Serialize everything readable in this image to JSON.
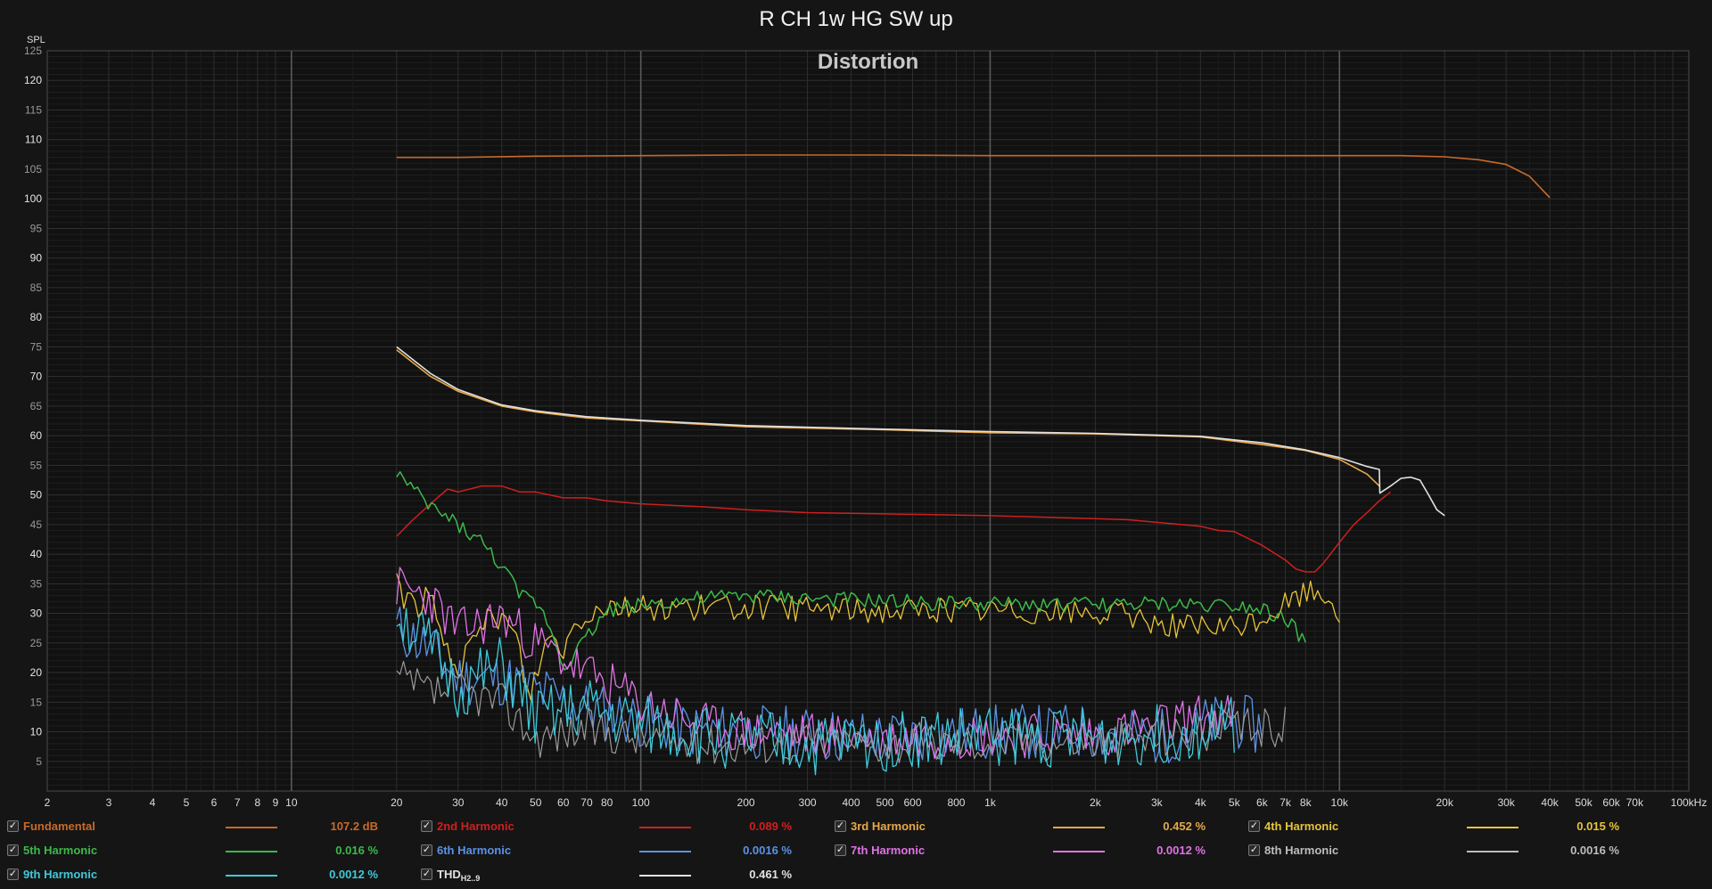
{
  "title": "R CH 1w HG SW up",
  "subtitle": "Distortion",
  "ylabel": "SPL",
  "chart_data": {
    "type": "line",
    "title": "R CH 1w HG SW up",
    "subtitle": "Distortion",
    "ylabel": "SPL",
    "ylim": [
      0,
      125
    ],
    "xlim": [
      2,
      100000
    ],
    "xscale": "log",
    "grid": true,
    "legend_position": "bottom",
    "y_ticks": [
      5,
      10,
      15,
      20,
      25,
      30,
      35,
      40,
      45,
      50,
      55,
      60,
      65,
      70,
      75,
      80,
      85,
      90,
      95,
      100,
      105,
      110,
      115,
      120,
      125
    ],
    "x_ticks": [
      {
        "v": 2,
        "t": "2"
      },
      {
        "v": 3,
        "t": "3"
      },
      {
        "v": 4,
        "t": "4"
      },
      {
        "v": 5,
        "t": "5"
      },
      {
        "v": 6,
        "t": "6"
      },
      {
        "v": 7,
        "t": "7"
      },
      {
        "v": 8,
        "t": "8"
      },
      {
        "v": 9,
        "t": "9"
      },
      {
        "v": 10,
        "t": "10"
      },
      {
        "v": 20,
        "t": "20"
      },
      {
        "v": 30,
        "t": "30"
      },
      {
        "v": 40,
        "t": "40"
      },
      {
        "v": 50,
        "t": "50"
      },
      {
        "v": 60,
        "t": "60"
      },
      {
        "v": 70,
        "t": "70"
      },
      {
        "v": 80,
        "t": "80"
      },
      {
        "v": 100,
        "t": "100"
      },
      {
        "v": 200,
        "t": "200"
      },
      {
        "v": 300,
        "t": "300"
      },
      {
        "v": 400,
        "t": "400"
      },
      {
        "v": 500,
        "t": "500"
      },
      {
        "v": 600,
        "t": "600"
      },
      {
        "v": 800,
        "t": "800"
      },
      {
        "v": 1000,
        "t": "1k"
      },
      {
        "v": 2000,
        "t": "2k"
      },
      {
        "v": 3000,
        "t": "3k"
      },
      {
        "v": 4000,
        "t": "4k"
      },
      {
        "v": 5000,
        "t": "5k"
      },
      {
        "v": 6000,
        "t": "6k"
      },
      {
        "v": 7000,
        "t": "7k"
      },
      {
        "v": 8000,
        "t": "8k"
      },
      {
        "v": 10000,
        "t": "10k"
      },
      {
        "v": 20000,
        "t": "20k"
      },
      {
        "v": 30000,
        "t": "30k"
      },
      {
        "v": 40000,
        "t": "40k"
      },
      {
        "v": 50000,
        "t": "50k"
      },
      {
        "v": 60000,
        "t": "60k"
      },
      {
        "v": 70000,
        "t": "70k"
      },
      {
        "v": 100000,
        "t": "100kHz"
      }
    ],
    "series": [
      {
        "name": "Fundamental",
        "color": "#c76a2b",
        "width": 1.6,
        "x": [
          20,
          30,
          50,
          100,
          200,
          500,
          1000,
          2000,
          5000,
          10000,
          15000,
          20000,
          25000,
          30000,
          35000,
          40000
        ],
        "y": [
          107,
          107,
          107.2,
          107.3,
          107.4,
          107.4,
          107.3,
          107.3,
          107.3,
          107.3,
          107.3,
          107.1,
          106.6,
          105.8,
          103.8,
          100.2
        ]
      },
      {
        "name": "2nd Harmonic",
        "color": "#d01f1f",
        "width": 1.5,
        "x": [
          20,
          22,
          25,
          28,
          30,
          35,
          40,
          45,
          50,
          60,
          70,
          80,
          100,
          150,
          200,
          300,
          500,
          1000,
          2000,
          2500,
          3500,
          4000,
          4500,
          5000,
          6000,
          7000,
          7500,
          8000,
          8500,
          9000,
          10000,
          11000,
          12000,
          13000,
          14000
        ],
        "y": [
          43,
          45.5,
          48.5,
          51,
          50.5,
          51.5,
          51.5,
          50.5,
          50.5,
          49.5,
          49.5,
          49,
          48.5,
          48,
          47.5,
          47,
          46.8,
          46.5,
          46,
          45.8,
          45,
          44.7,
          44,
          43.8,
          41.5,
          39,
          37.5,
          37,
          37,
          38.5,
          42,
          45,
          47,
          49,
          50.5
        ]
      },
      {
        "name": "3rd Harmonic",
        "color": "#e8a84a",
        "width": 1.6,
        "x": [
          20,
          25,
          30,
          40,
          50,
          70,
          100,
          200,
          500,
          1000,
          2000,
          4000,
          6000,
          8000,
          10000,
          12000,
          13000
        ],
        "y": [
          74.5,
          70,
          67.5,
          65,
          64,
          63,
          62.5,
          61.5,
          61,
          60.5,
          60.3,
          59.8,
          58.5,
          57.5,
          56,
          53.5,
          51.5
        ]
      },
      {
        "name": "4th Harmonic",
        "color": "#e6c43a",
        "width": 1.3,
        "noise": 1.0,
        "x": [
          20,
          21,
          23,
          25,
          27,
          30,
          33,
          36,
          40,
          44,
          48,
          50,
          55,
          60,
          65,
          70,
          80,
          100,
          200,
          500,
          1000,
          2000,
          2500,
          3000,
          4000,
          5000,
          6000,
          7000,
          8000,
          9000,
          10000
        ],
        "y": [
          37,
          32.5,
          31.5,
          33,
          25,
          21,
          24,
          29,
          29.5,
          26,
          15,
          20,
          26.5,
          24,
          28.5,
          30,
          31.5,
          31,
          31,
          30.5,
          30.5,
          30,
          29.5,
          28.5,
          27.5,
          27.5,
          29,
          31.5,
          33.5,
          33.5,
          30.5
        ]
      },
      {
        "name": "5th Harmonic",
        "color": "#3cb94a",
        "width": 1.5,
        "noise": 0.6,
        "x": [
          20,
          22,
          25,
          30,
          35,
          40,
          45,
          50,
          55,
          60,
          70,
          80,
          100,
          150,
          200,
          300,
          500,
          1000,
          2000,
          3000,
          5000,
          6000,
          7000,
          7500,
          8000
        ],
        "y": [
          54,
          51,
          48,
          45,
          42,
          38,
          33,
          32,
          28,
          21,
          26,
          30.5,
          31.5,
          32.5,
          33,
          32.5,
          32,
          31.5,
          31.5,
          31.5,
          31.5,
          31,
          29,
          27,
          25
        ]
      },
      {
        "name": "6th Harmonic",
        "color": "#5b92e6",
        "width": 1.3,
        "noise": 2.2,
        "seed": 11,
        "x": [
          20,
          25,
          30,
          40,
          50,
          70,
          100,
          150,
          200,
          300,
          500,
          1000,
          2000,
          3000,
          4000,
          5000,
          6000
        ],
        "y": [
          27.5,
          24,
          19,
          19,
          17,
          14,
          12,
          10,
          10,
          9.5,
          9,
          10,
          10,
          9,
          11,
          12,
          10.5
        ]
      },
      {
        "name": "7th Harmonic",
        "color": "#e073e6",
        "width": 1.3,
        "noise": 1.8,
        "seed": 23,
        "x": [
          20,
          25,
          30,
          40,
          50,
          70,
          100,
          150,
          200,
          300,
          500,
          1000,
          2000,
          3000,
          4000,
          5000
        ],
        "y": [
          34.5,
          32.5,
          27,
          29.5,
          25,
          20,
          15,
          11,
          10,
          9.5,
          9,
          9.5,
          9.5,
          11,
          12.5,
          12.5
        ]
      },
      {
        "name": "8th Harmonic",
        "color": "#9a9a9a",
        "width": 1.2,
        "noise": 1.6,
        "seed": 37,
        "x": [
          20,
          25,
          30,
          40,
          50,
          70,
          100,
          150,
          200,
          300,
          500,
          1000,
          2000,
          3000,
          4000,
          5000,
          6000,
          7000
        ],
        "y": [
          19,
          16.5,
          17,
          15,
          9,
          10.5,
          9,
          8,
          8,
          8.5,
          8,
          8.5,
          8.5,
          9,
          10,
          10.5,
          10.5,
          11
        ]
      },
      {
        "name": "9th Harmonic",
        "color": "#3fc9d9",
        "width": 1.3,
        "noise": 2.4,
        "seed": 51,
        "x": [
          20,
          25,
          30,
          40,
          50,
          70,
          100,
          150,
          200,
          300,
          500,
          1000,
          2000,
          3000,
          4000,
          5000
        ],
        "y": [
          30.5,
          24,
          17,
          21,
          12,
          14,
          11,
          9.5,
          8.5,
          7.5,
          8.5,
          9.5,
          9,
          9.5,
          10.5,
          11
        ]
      },
      {
        "name": "THD H2..9",
        "color": "#e2e2e2",
        "width": 1.6,
        "x": [
          20,
          25,
          30,
          40,
          50,
          70,
          100,
          200,
          500,
          1000,
          2000,
          4000,
          6000,
          8000,
          10000,
          12000,
          13000,
          13050,
          14000,
          15000,
          16000,
          17000,
          18000,
          19000,
          20000
        ],
        "y": [
          75,
          70.5,
          67.8,
          65.2,
          64.2,
          63.2,
          62.6,
          61.7,
          61.1,
          60.7,
          60.4,
          59.9,
          58.8,
          57.6,
          56.3,
          54.8,
          54.3,
          50.3,
          51.5,
          52.8,
          53,
          52.5,
          50,
          47.5,
          46.5
        ]
      }
    ]
  },
  "legend": [
    {
      "name": "Fundamental",
      "value": "107.2 dB",
      "color": "#c76a2b",
      "checked": true
    },
    {
      "name": "2nd Harmonic",
      "value": "0.089 %",
      "color": "#d01f1f",
      "checked": true
    },
    {
      "name": "3rd Harmonic",
      "value": "0.452 %",
      "color": "#e8a84a",
      "checked": true
    },
    {
      "name": "4th Harmonic",
      "value": "0.015 %",
      "color": "#e6c43a",
      "checked": true
    },
    {
      "name": "5th Harmonic",
      "value": "0.016 %",
      "color": "#3cb94a",
      "checked": true
    },
    {
      "name": "6th Harmonic",
      "value": "0.0016 %",
      "color": "#5b92e6",
      "checked": true
    },
    {
      "name": "7th Harmonic",
      "value": "0.0012 %",
      "color": "#e073e6",
      "checked": true
    },
    {
      "name": "8th Harmonic",
      "value": "0.0016 %",
      "color": "#bdbdbd",
      "checked": true
    },
    {
      "name": "9th Harmonic",
      "value": "0.0012 %",
      "color": "#3fc9d9",
      "checked": true
    },
    {
      "name": "THD",
      "name_sub": "H2..9",
      "value": "0.461 %",
      "color": "#e2e2e2",
      "checked": true
    }
  ],
  "checkmark": "✓"
}
